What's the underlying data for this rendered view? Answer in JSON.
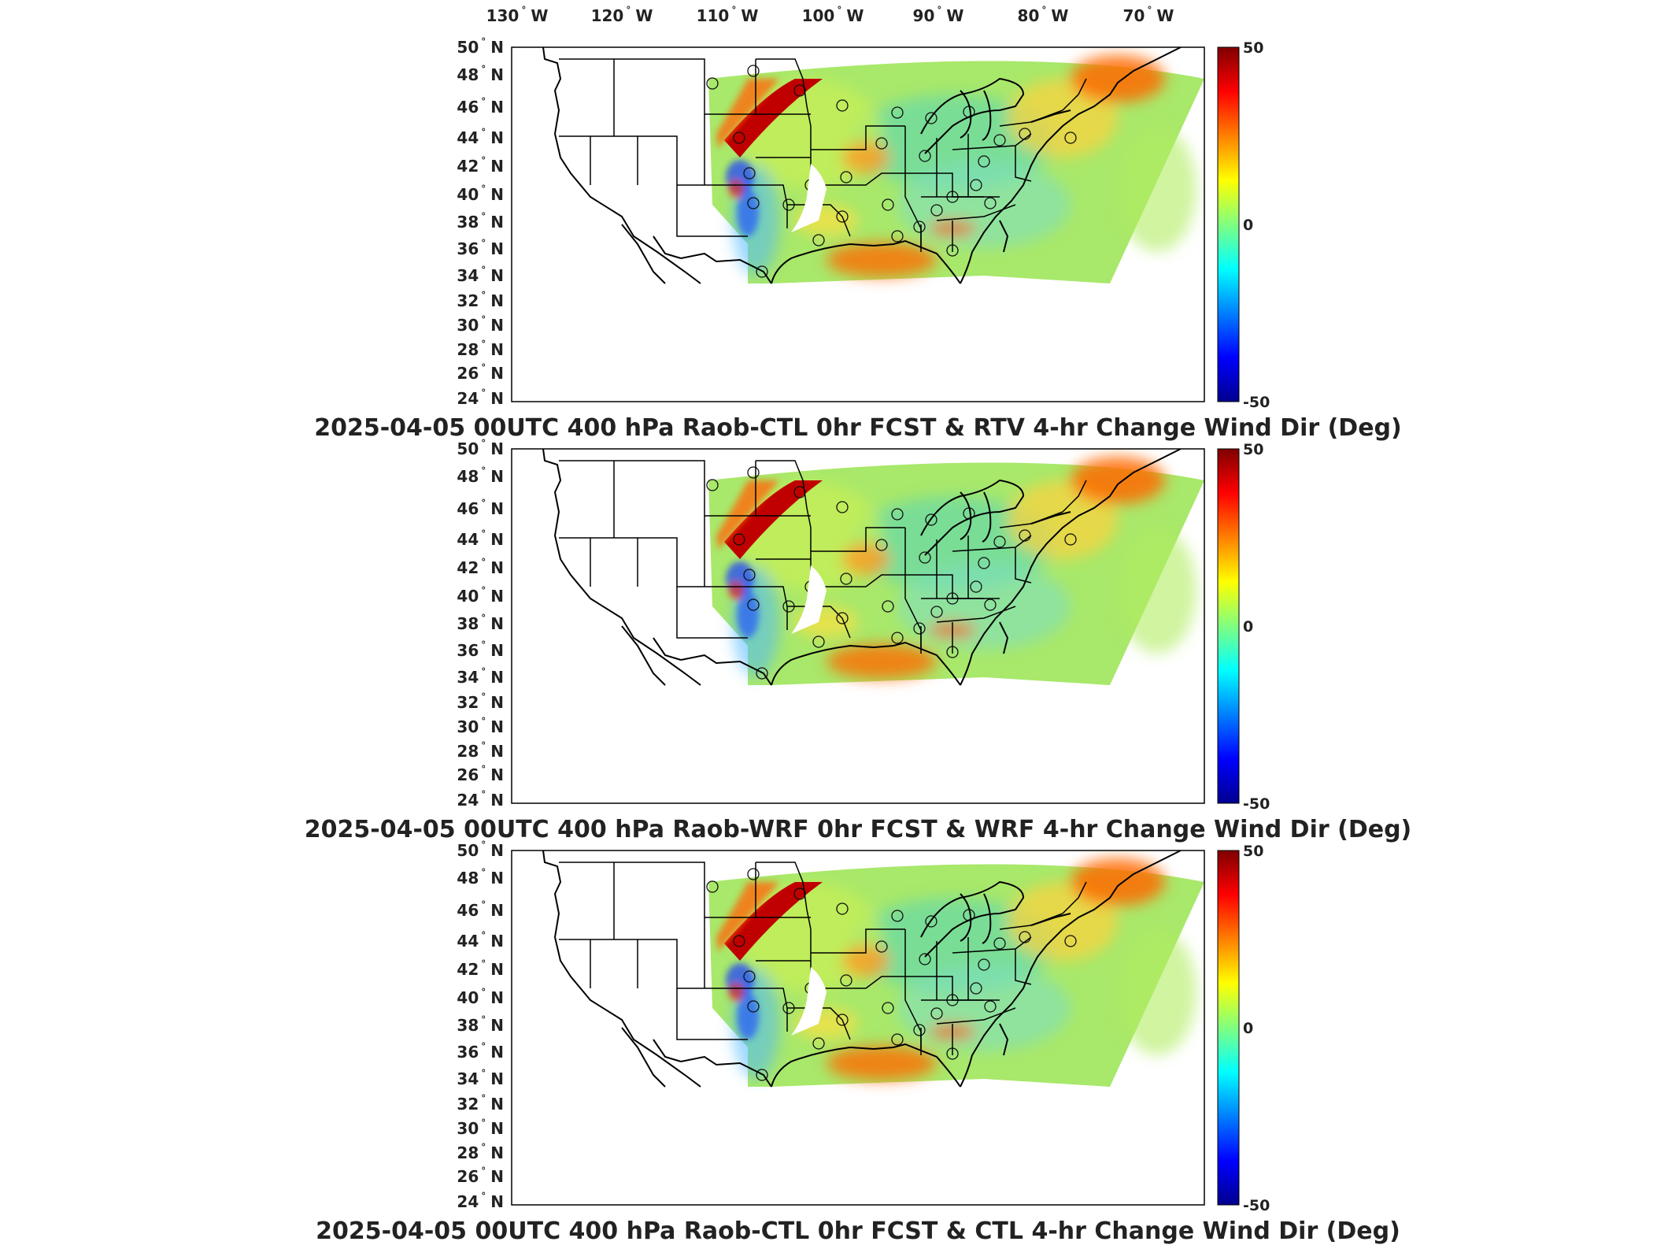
{
  "lon_labels": [
    {
      "num": "130",
      "hemi": "W"
    },
    {
      "num": "120",
      "hemi": "W"
    },
    {
      "num": "110",
      "hemi": "W"
    },
    {
      "num": "100",
      "hemi": "W"
    },
    {
      "num": "90",
      "hemi": "W"
    },
    {
      "num": "80",
      "hemi": "W"
    },
    {
      "num": "70",
      "hemi": "W"
    }
  ],
  "lat_labels": [
    {
      "num": "50",
      "hemi": "N"
    },
    {
      "num": "48",
      "hemi": "N"
    },
    {
      "num": "46",
      "hemi": "N"
    },
    {
      "num": "44",
      "hemi": "N"
    },
    {
      "num": "42",
      "hemi": "N"
    },
    {
      "num": "40",
      "hemi": "N"
    },
    {
      "num": "38",
      "hemi": "N"
    },
    {
      "num": "36",
      "hemi": "N"
    },
    {
      "num": "34",
      "hemi": "N"
    },
    {
      "num": "32",
      "hemi": "N"
    },
    {
      "num": "30",
      "hemi": "N"
    },
    {
      "num": "28",
      "hemi": "N"
    },
    {
      "num": "26",
      "hemi": "N"
    },
    {
      "num": "24",
      "hemi": "N"
    }
  ],
  "colorbar": {
    "max_label": "50",
    "mid_label": "0",
    "min_label": "-50",
    "colors": [
      "#00008f",
      "#0000ff",
      "#0080ff",
      "#00ffff",
      "#80ff80",
      "#ffff00",
      "#ff8000",
      "#ff0000",
      "#800000"
    ]
  },
  "panels": [
    {
      "title": "2025-04-05 00UTC 400 hPa Raob-CTL 0hr FCST & RTV 4-hr Change Wind Dir (Deg)"
    },
    {
      "title": "2025-04-05 00UTC 400 hPa Raob-WRF 0hr FCST & WRF 4-hr Change Wind Dir (Deg)"
    },
    {
      "title": "2025-04-05 00UTC 400 hPa Raob-CTL 0hr FCST & CTL 4-hr Change Wind Dir (Deg)"
    }
  ]
}
